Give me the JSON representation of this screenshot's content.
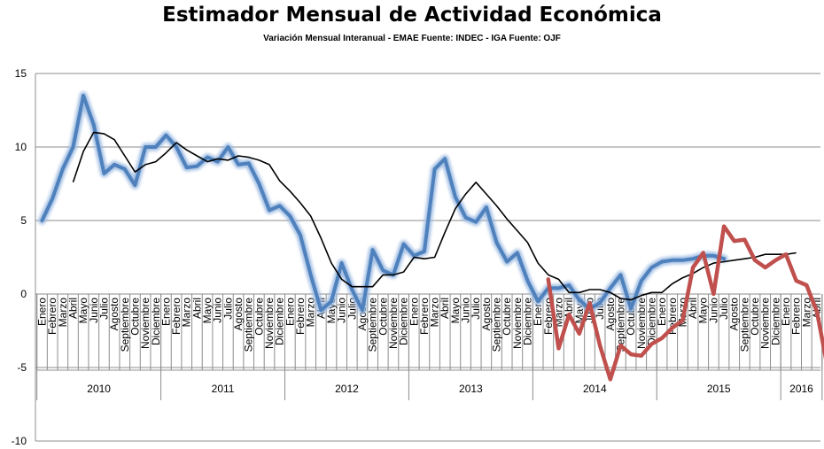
{
  "title": "Estimador Mensual de Actividad Económica",
  "subtitle": "Variación Mensual Interanual - EMAE Fuente: INDEC - IGA Fuente: OJF",
  "chart_data": {
    "type": "line",
    "title": "Estimador Mensual de Actividad Económica",
    "subtitle": "Variación Mensual Interanual - EMAE Fuente: INDEC - IGA Fuente: OJF",
    "ylim": [
      -10,
      15
    ],
    "yticks": [
      -10,
      -5,
      0,
      5,
      10,
      15
    ],
    "grid": true,
    "legend": "none",
    "month_labels": [
      "Enero",
      "Febrero",
      "Marzo",
      "Abril",
      "Mayo",
      "Junio",
      "Julio",
      "Agosto",
      "Septiembre",
      "Octubre",
      "Noviembre",
      "Diciembre"
    ],
    "years": [
      "2010",
      "2011",
      "2012",
      "2013",
      "2014",
      "2015",
      "2016"
    ],
    "x_count": 76,
    "series": [
      {
        "color": "#4f81bd",
        "start_index": 0,
        "values": [
          5.0,
          6.5,
          8.5,
          10.0,
          13.5,
          11.5,
          8.2,
          8.8,
          8.5,
          7.4,
          10.0,
          10.0,
          10.8,
          10.0,
          8.6,
          8.7,
          9.3,
          9.0,
          10.0,
          8.8,
          8.9,
          7.5,
          5.7,
          6.0,
          5.3,
          4.0,
          1.3,
          -1.1,
          -0.5,
          2.1,
          0.3,
          -1.1,
          3.0,
          1.6,
          1.3,
          3.4,
          2.6,
          2.9,
          8.5,
          9.2,
          6.6,
          5.2,
          4.9,
          5.9,
          3.5,
          2.2,
          2.8,
          0.9,
          -0.5,
          0.4,
          0.4,
          0.6,
          -0.4,
          -1.0,
          -0.6,
          0.4,
          1.3,
          -1.0,
          0.9,
          1.8,
          2.2,
          2.3,
          2.3,
          2.4,
          2.6,
          2.6,
          2.4
        ]
      },
      {
        "color": "#000000",
        "start_index": 3,
        "values": [
          7.6,
          9.7,
          11.0,
          10.9,
          10.5,
          9.4,
          8.3,
          8.8,
          9.0,
          9.6,
          10.3,
          9.8,
          9.4,
          9.0,
          9.2,
          9.1,
          9.4,
          9.3,
          9.1,
          8.8,
          7.7,
          7.0,
          6.2,
          5.3,
          3.8,
          2.1,
          1.0,
          0.5,
          0.5,
          0.5,
          1.3,
          1.3,
          1.5,
          2.5,
          2.4,
          2.5,
          4.2,
          5.8,
          6.8,
          7.6,
          6.8,
          6.0,
          5.1,
          4.3,
          3.5,
          2.1,
          1.3,
          1.0,
          0.1,
          0.1,
          0.3,
          0.3,
          0.1,
          -0.3,
          -0.4,
          -0.1,
          0.1,
          0.1,
          0.7,
          1.1,
          1.4,
          1.8,
          2.1,
          2.2,
          2.3,
          2.4,
          2.5,
          2.7,
          2.7,
          2.7,
          2.8
        ]
      },
      {
        "color": "#c0504d",
        "start_index": 49,
        "values": [
          1.0,
          -3.7,
          -1.4,
          -2.7,
          -0.6,
          -3.5,
          -5.8,
          -3.5,
          -4.1,
          -4.2,
          -3.4,
          -3.0,
          -2.3,
          -1.8,
          1.8,
          2.8,
          0.0,
          4.6,
          3.6,
          3.7,
          2.3,
          1.8,
          2.3,
          2.7,
          0.9,
          0.6,
          -1.2,
          -4.9
        ]
      }
    ]
  }
}
